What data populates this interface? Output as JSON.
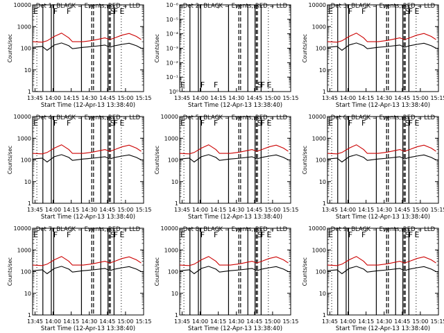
{
  "chart_data": [
    {
      "type": "line",
      "title": "Det 1r BLACK = Events, RED = LLD",
      "xlabel": "Start Time (12-Apr-13 13:38:40)",
      "ylabel": "Counts/sec",
      "yscale": "log",
      "ylim_exp": [
        0,
        4
      ],
      "ytick_labels": [
        "1",
        "10",
        "100",
        "1000",
        "10000"
      ],
      "xticks": [
        "13:45",
        "14:00",
        "14:15",
        "14:30",
        "14:45",
        "15:00",
        "15:15"
      ],
      "markers": [
        "E",
        "F",
        "F",
        "S",
        "F",
        "E"
      ],
      "series": [
        {
          "color": "#cc0000",
          "x": [
            0,
            8,
            12,
            18,
            24,
            30,
            33,
            42,
            50,
            60,
            64,
            68,
            74,
            80,
            86,
            90
          ],
          "values": [
            200,
            190,
            220,
            350,
            500,
            300,
            200,
            200,
            230,
            300,
            250,
            300,
            400,
            480,
            350,
            250
          ]
        },
        {
          "color": "#000000",
          "x": [
            0,
            8,
            12,
            18,
            24,
            30,
            33,
            42,
            50,
            60,
            64,
            68,
            74,
            80,
            86,
            90
          ],
          "values": [
            110,
            120,
            80,
            140,
            175,
            130,
            95,
            110,
            120,
            140,
            110,
            130,
            150,
            170,
            130,
            100
          ]
        }
      ]
    },
    {
      "type": "line",
      "title": "Det 2r BLACK = Events, RED = LLD",
      "xlabel": "Start Time (12-Apr-13 13:38:40)",
      "ylabel": "Counts/sec",
      "yscale": "log",
      "ylim_exp": [
        0,
        -6
      ],
      "ytick_labels": [
        "10⁰",
        "10⁻¹",
        "10⁻²",
        "10⁻³",
        "10⁻⁴",
        "10⁻⁵",
        "10⁻⁶"
      ],
      "xticks": [
        "13:45",
        "14:00",
        "14:15",
        "14:30",
        "14:45",
        "15:00",
        "15:15"
      ],
      "markers": [
        "E",
        "F",
        "F",
        "S",
        "F",
        "E"
      ],
      "series": []
    },
    {
      "type": "line",
      "title": "Det 3r BLACK = Events, RED = LLD",
      "xlabel": "Start Time (12-Apr-13 13:38:40)",
      "ylabel": "Counts/sec",
      "yscale": "log",
      "ylim_exp": [
        0,
        4
      ],
      "ytick_labels": [
        "1",
        "10",
        "100",
        "1000",
        "10000"
      ],
      "xticks": [
        "13:45",
        "14:00",
        "14:15",
        "14:30",
        "14:45",
        "15:00",
        "15:15"
      ],
      "markers": [
        "E",
        "F",
        "F",
        "S",
        "F",
        "E"
      ],
      "series": [
        {
          "color": "#cc0000",
          "x": [
            0,
            8,
            12,
            18,
            24,
            30,
            33,
            42,
            50,
            60,
            64,
            68,
            74,
            80,
            86,
            90
          ],
          "values": [
            200,
            190,
            220,
            350,
            500,
            300,
            200,
            200,
            230,
            300,
            250,
            300,
            400,
            480,
            350,
            250
          ]
        },
        {
          "color": "#000000",
          "x": [
            0,
            8,
            12,
            18,
            24,
            30,
            33,
            42,
            50,
            60,
            64,
            68,
            74,
            80,
            86,
            90
          ],
          "values": [
            110,
            120,
            80,
            140,
            175,
            130,
            95,
            110,
            120,
            140,
            110,
            130,
            150,
            170,
            130,
            100
          ]
        }
      ]
    },
    {
      "type": "line",
      "title": "Det 4r BLACK = Events, RED = LLD",
      "xlabel": "Start Time (12-Apr-13 13:38:40)",
      "ylabel": "Counts/sec",
      "yscale": "log",
      "ylim_exp": [
        0,
        4
      ],
      "ytick_labels": [
        "1",
        "10",
        "100",
        "1000",
        "10000"
      ],
      "xticks": [
        "13:45",
        "14:00",
        "14:15",
        "14:30",
        "14:45",
        "15:00",
        "15:15"
      ],
      "markers": [
        "E",
        "F",
        "F",
        "S",
        "F",
        "E"
      ],
      "series": [
        {
          "color": "#cc0000",
          "x": [
            0,
            8,
            12,
            18,
            24,
            30,
            33,
            42,
            50,
            60,
            64,
            68,
            74,
            80,
            86,
            90
          ],
          "values": [
            200,
            190,
            220,
            350,
            500,
            300,
            200,
            200,
            230,
            300,
            250,
            300,
            400,
            480,
            350,
            250
          ]
        },
        {
          "color": "#000000",
          "x": [
            0,
            8,
            12,
            18,
            24,
            30,
            33,
            42,
            50,
            60,
            64,
            68,
            74,
            80,
            86,
            90
          ],
          "values": [
            110,
            120,
            80,
            140,
            175,
            130,
            95,
            110,
            120,
            140,
            110,
            130,
            150,
            170,
            130,
            100
          ]
        }
      ]
    },
    {
      "type": "line",
      "title": "Det 5r BLACK = Events, RED = LLD",
      "xlabel": "Start Time (12-Apr-13 13:38:40)",
      "ylabel": "Counts/sec",
      "yscale": "log",
      "ylim_exp": [
        0,
        4
      ],
      "ytick_labels": [
        "1",
        "10",
        "100",
        "1000",
        "10000"
      ],
      "xticks": [
        "13:45",
        "14:00",
        "14:15",
        "14:30",
        "14:45",
        "15:00",
        "15:15"
      ],
      "markers": [
        "E",
        "F",
        "F",
        "S",
        "F",
        "E"
      ],
      "series": [
        {
          "color": "#cc0000",
          "x": [
            0,
            8,
            12,
            18,
            24,
            30,
            33,
            42,
            50,
            60,
            64,
            68,
            74,
            80,
            86,
            90
          ],
          "values": [
            200,
            190,
            220,
            350,
            500,
            300,
            200,
            200,
            230,
            300,
            250,
            300,
            400,
            480,
            350,
            250
          ]
        },
        {
          "color": "#000000",
          "x": [
            0,
            8,
            12,
            18,
            24,
            30,
            33,
            42,
            50,
            60,
            64,
            68,
            74,
            80,
            86,
            90
          ],
          "values": [
            110,
            120,
            80,
            140,
            175,
            130,
            95,
            110,
            120,
            140,
            110,
            130,
            150,
            170,
            130,
            100
          ]
        }
      ]
    },
    {
      "type": "line",
      "title": "Det 6r BLACK = Events, RED = LLD",
      "xlabel": "Start Time (12-Apr-13 13:38:40)",
      "ylabel": "Counts/sec",
      "yscale": "log",
      "ylim_exp": [
        0,
        4
      ],
      "ytick_labels": [
        "1",
        "10",
        "100",
        "1000",
        "10000"
      ],
      "xticks": [
        "13:45",
        "14:00",
        "14:15",
        "14:30",
        "14:45",
        "15:00",
        "15:15"
      ],
      "markers": [
        "E",
        "F",
        "F",
        "S",
        "F",
        "E"
      ],
      "series": [
        {
          "color": "#cc0000",
          "x": [
            0,
            8,
            12,
            18,
            24,
            30,
            33,
            42,
            50,
            60,
            64,
            68,
            74,
            80,
            86,
            90
          ],
          "values": [
            200,
            190,
            220,
            350,
            500,
            300,
            200,
            200,
            230,
            300,
            250,
            300,
            400,
            480,
            350,
            250
          ]
        },
        {
          "color": "#000000",
          "x": [
            0,
            8,
            12,
            18,
            24,
            30,
            33,
            42,
            50,
            60,
            64,
            68,
            74,
            80,
            86,
            90
          ],
          "values": [
            110,
            120,
            80,
            140,
            175,
            130,
            95,
            110,
            120,
            140,
            110,
            130,
            150,
            170,
            130,
            100
          ]
        }
      ]
    },
    {
      "type": "line",
      "title": "Det 7r BLACK = Events, RED = LLD",
      "xlabel": "Start Time (12-Apr-13 13:38:40)",
      "ylabel": "Counts/sec",
      "yscale": "log",
      "ylim_exp": [
        0,
        4
      ],
      "ytick_labels": [
        "1",
        "10",
        "100",
        "1000",
        "10000"
      ],
      "xticks": [
        "13:45",
        "14:00",
        "14:15",
        "14:30",
        "14:45",
        "15:00",
        "15:15"
      ],
      "markers": [
        "E",
        "F",
        "F",
        "S",
        "F",
        "E"
      ],
      "series": [
        {
          "color": "#cc0000",
          "x": [
            0,
            8,
            12,
            18,
            24,
            30,
            33,
            42,
            50,
            60,
            64,
            68,
            74,
            80,
            86,
            90
          ],
          "values": [
            200,
            190,
            220,
            350,
            500,
            300,
            200,
            200,
            230,
            300,
            250,
            300,
            400,
            480,
            350,
            250
          ]
        },
        {
          "color": "#000000",
          "x": [
            0,
            8,
            12,
            18,
            24,
            30,
            33,
            42,
            50,
            60,
            64,
            68,
            74,
            80,
            86,
            90
          ],
          "values": [
            110,
            120,
            80,
            140,
            175,
            130,
            95,
            110,
            120,
            140,
            110,
            130,
            150,
            170,
            130,
            100
          ]
        }
      ]
    },
    {
      "type": "line",
      "title": "Det 8r BLACK = Events, RED = LLD",
      "xlabel": "Start Time (12-Apr-13 13:38:40)",
      "ylabel": "Counts/sec",
      "yscale": "log",
      "ylim_exp": [
        0,
        4
      ],
      "ytick_labels": [
        "1",
        "10",
        "100",
        "1000",
        "10000"
      ],
      "xticks": [
        "13:45",
        "14:00",
        "14:15",
        "14:30",
        "14:45",
        "15:00",
        "15:15"
      ],
      "markers": [
        "E",
        "F",
        "F",
        "S",
        "F",
        "E"
      ],
      "series": [
        {
          "color": "#cc0000",
          "x": [
            0,
            8,
            12,
            18,
            24,
            30,
            33,
            42,
            50,
            60,
            64,
            68,
            74,
            80,
            86,
            90
          ],
          "values": [
            200,
            190,
            220,
            350,
            500,
            300,
            200,
            200,
            230,
            300,
            250,
            300,
            400,
            480,
            350,
            250
          ]
        },
        {
          "color": "#000000",
          "x": [
            0,
            8,
            12,
            18,
            24,
            30,
            33,
            42,
            50,
            60,
            64,
            68,
            74,
            80,
            86,
            90
          ],
          "values": [
            110,
            120,
            80,
            140,
            175,
            130,
            95,
            110,
            120,
            140,
            110,
            130,
            150,
            170,
            130,
            100
          ]
        }
      ]
    },
    {
      "type": "line",
      "title": "Det 9r BLACK = Events, RED = LLD",
      "xlabel": "Start Time (12-Apr-13 13:38:40)",
      "ylabel": "Counts/sec",
      "yscale": "log",
      "ylim_exp": [
        0,
        4
      ],
      "ytick_labels": [
        "1",
        "10",
        "100",
        "1000",
        "10000"
      ],
      "xticks": [
        "13:45",
        "14:00",
        "14:15",
        "14:30",
        "14:45",
        "15:00",
        "15:15"
      ],
      "markers": [
        "E",
        "F",
        "F",
        "S",
        "F",
        "E"
      ],
      "series": [
        {
          "color": "#cc0000",
          "x": [
            0,
            8,
            12,
            18,
            24,
            30,
            33,
            42,
            50,
            60,
            64,
            68,
            74,
            80,
            86,
            90
          ],
          "values": [
            200,
            190,
            220,
            350,
            500,
            300,
            200,
            200,
            230,
            300,
            250,
            300,
            400,
            480,
            350,
            250
          ]
        },
        {
          "color": "#000000",
          "x": [
            0,
            8,
            12,
            18,
            24,
            30,
            33,
            42,
            50,
            60,
            64,
            68,
            74,
            80,
            86,
            90
          ],
          "values": [
            110,
            120,
            80,
            140,
            175,
            130,
            95,
            110,
            120,
            140,
            110,
            130,
            150,
            170,
            130,
            100
          ]
        }
      ]
    }
  ]
}
